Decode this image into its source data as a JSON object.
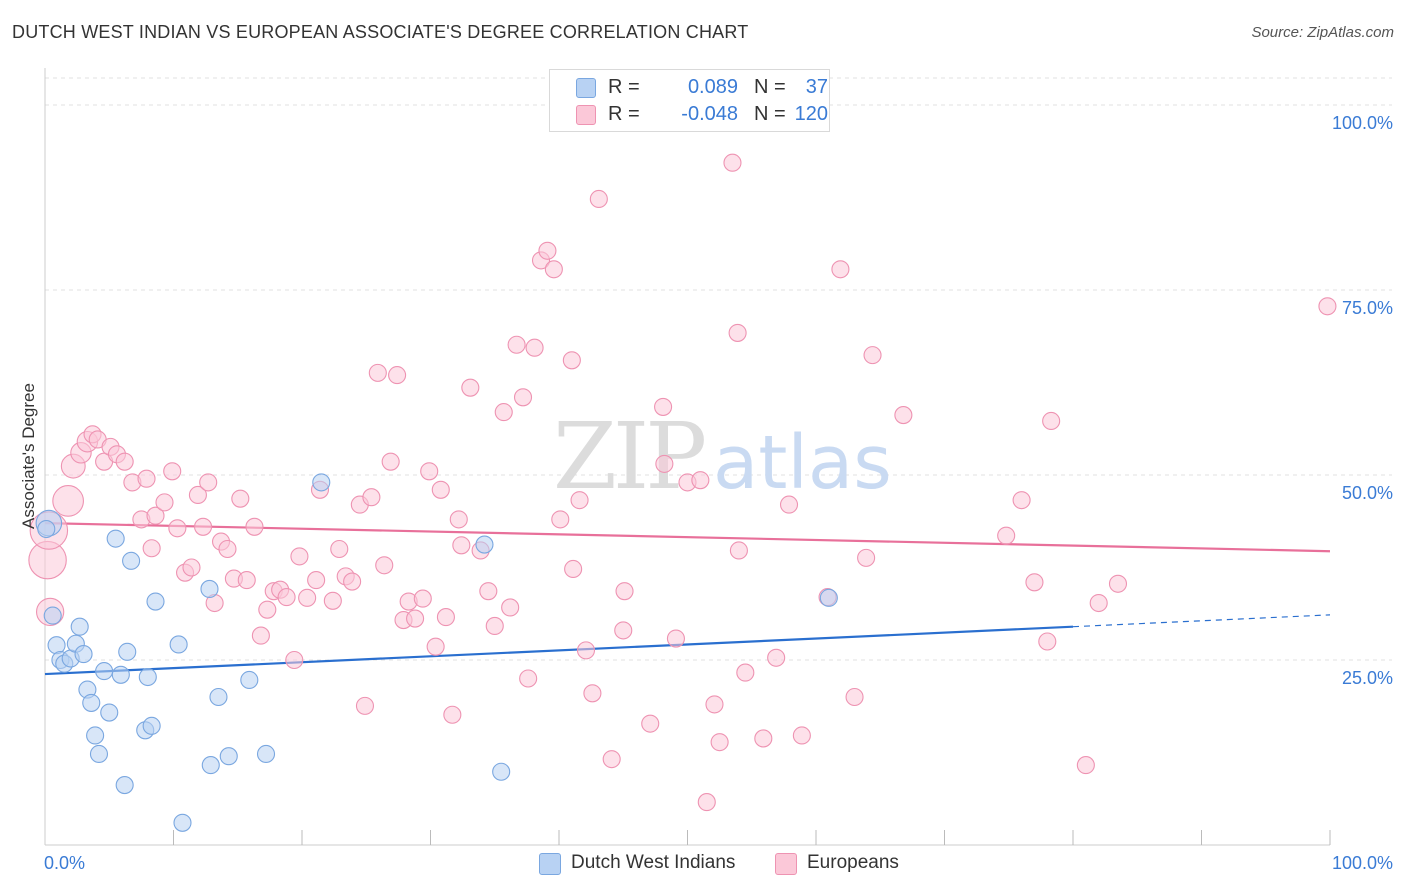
{
  "title": "DUTCH WEST INDIAN VS EUROPEAN ASSOCIATE'S DEGREE CORRELATION CHART",
  "source": "Source: ZipAtlas.com",
  "watermark": {
    "zip": "ZIP",
    "atlas": "atlas"
  },
  "legend": {
    "r_label": "R =",
    "n_label": "N =",
    "rows": [
      {
        "name": "Dutch West Indians",
        "r": "0.089",
        "n": "37",
        "fill": "#b8d2f3",
        "stroke": "#7aa7e0"
      },
      {
        "name": "Europeans",
        "r": "-0.048",
        "n": "120",
        "fill": "#fbc8d8",
        "stroke": "#ee93b2"
      }
    ]
  },
  "chart_data": {
    "type": "scatter",
    "title": "DUTCH WEST INDIAN VS EUROPEAN ASSOCIATE'S DEGREE CORRELATION CHART",
    "xlabel": "",
    "ylabel": "Associate's Degree",
    "xlim": [
      0,
      100
    ],
    "ylim": [
      0,
      105
    ],
    "x_tick_labels": [
      "0.0%",
      "100.0%"
    ],
    "y_ticks": [
      {
        "value": 100,
        "label": "100.0%"
      },
      {
        "value": 75,
        "label": "75.0%"
      },
      {
        "value": 50,
        "label": "50.0%"
      },
      {
        "value": 25,
        "label": "25.0%"
      }
    ],
    "grid": true,
    "series": [
      {
        "name": "Dutch West Indians",
        "color": "#7aa7e0",
        "fill": "#b8d2f3",
        "trend": {
          "x0": 0,
          "y0": 23.1,
          "x1": 80,
          "y1": 29.5,
          "dash_to_x": 100,
          "dash_to_y": 31.1,
          "color": "#2a6fcf"
        },
        "points": [
          {
            "x": 0.3,
            "y": 43.5,
            "s": 1.5
          },
          {
            "x": 0.6,
            "y": 31.0,
            "s": 1
          },
          {
            "x": 0.9,
            "y": 27.0,
            "s": 1
          },
          {
            "x": 1.2,
            "y": 25.0,
            "s": 1
          },
          {
            "x": 1.5,
            "y": 24.5,
            "s": 1
          },
          {
            "x": 2.0,
            "y": 25.2,
            "s": 1
          },
          {
            "x": 2.4,
            "y": 27.2,
            "s": 1
          },
          {
            "x": 2.7,
            "y": 29.5,
            "s": 1
          },
          {
            "x": 3.0,
            "y": 25.8,
            "s": 1
          },
          {
            "x": 3.3,
            "y": 21.0,
            "s": 1
          },
          {
            "x": 3.6,
            "y": 19.2,
            "s": 1
          },
          {
            "x": 3.9,
            "y": 14.8,
            "s": 1
          },
          {
            "x": 4.2,
            "y": 12.3,
            "s": 1
          },
          {
            "x": 4.6,
            "y": 23.5,
            "s": 1
          },
          {
            "x": 5.0,
            "y": 17.9,
            "s": 1
          },
          {
            "x": 5.5,
            "y": 41.4,
            "s": 1
          },
          {
            "x": 5.9,
            "y": 23.0,
            "s": 1
          },
          {
            "x": 6.2,
            "y": 8.1,
            "s": 1
          },
          {
            "x": 6.4,
            "y": 26.1,
            "s": 1
          },
          {
            "x": 6.7,
            "y": 38.4,
            "s": 1
          },
          {
            "x": 7.8,
            "y": 15.5,
            "s": 1
          },
          {
            "x": 8.0,
            "y": 22.7,
            "s": 1
          },
          {
            "x": 8.3,
            "y": 16.1,
            "s": 1
          },
          {
            "x": 8.6,
            "y": 32.9,
            "s": 1
          },
          {
            "x": 10.4,
            "y": 27.1,
            "s": 1
          },
          {
            "x": 10.7,
            "y": 3.0,
            "s": 1
          },
          {
            "x": 12.8,
            "y": 34.6,
            "s": 1
          },
          {
            "x": 12.9,
            "y": 10.8,
            "s": 1
          },
          {
            "x": 13.5,
            "y": 20.0,
            "s": 1
          },
          {
            "x": 14.3,
            "y": 12.0,
            "s": 1
          },
          {
            "x": 15.9,
            "y": 22.3,
            "s": 1
          },
          {
            "x": 17.2,
            "y": 12.3,
            "s": 1
          },
          {
            "x": 21.5,
            "y": 49.0,
            "s": 1
          },
          {
            "x": 34.2,
            "y": 40.6,
            "s": 1
          },
          {
            "x": 35.5,
            "y": 9.9,
            "s": 1
          },
          {
            "x": 61.0,
            "y": 33.4,
            "s": 1
          },
          {
            "x": 0.1,
            "y": 42.7,
            "s": 1
          }
        ]
      },
      {
        "name": "Europeans",
        "color": "#ee93b2",
        "fill": "#fbc8d8",
        "trend": {
          "x0": 0,
          "y0": 43.5,
          "x1": 100,
          "y1": 39.7,
          "color": "#e8709a"
        },
        "points": [
          {
            "x": 0.2,
            "y": 38.5,
            "s": 2.2
          },
          {
            "x": 0.3,
            "y": 42.5,
            "s": 2.2
          },
          {
            "x": 0.4,
            "y": 31.5,
            "s": 1.6
          },
          {
            "x": 1.8,
            "y": 46.5,
            "s": 1.8
          },
          {
            "x": 2.2,
            "y": 51.2,
            "s": 1.4
          },
          {
            "x": 2.8,
            "y": 53.0,
            "s": 1.2
          },
          {
            "x": 3.3,
            "y": 54.5,
            "s": 1.2
          },
          {
            "x": 3.7,
            "y": 55.5,
            "s": 1
          },
          {
            "x": 4.1,
            "y": 54.8,
            "s": 1
          },
          {
            "x": 4.6,
            "y": 51.8,
            "s": 1
          },
          {
            "x": 5.1,
            "y": 53.8,
            "s": 1
          },
          {
            "x": 5.6,
            "y": 52.8,
            "s": 1
          },
          {
            "x": 6.2,
            "y": 51.8,
            "s": 1
          },
          {
            "x": 6.8,
            "y": 49.0,
            "s": 1
          },
          {
            "x": 7.5,
            "y": 44.0,
            "s": 1
          },
          {
            "x": 7.9,
            "y": 49.5,
            "s": 1
          },
          {
            "x": 8.3,
            "y": 40.1,
            "s": 1
          },
          {
            "x": 8.6,
            "y": 44.5,
            "s": 1
          },
          {
            "x": 9.3,
            "y": 46.3,
            "s": 1
          },
          {
            "x": 9.9,
            "y": 50.5,
            "s": 1
          },
          {
            "x": 10.3,
            "y": 42.8,
            "s": 1
          },
          {
            "x": 10.9,
            "y": 36.8,
            "s": 1
          },
          {
            "x": 11.4,
            "y": 37.5,
            "s": 1
          },
          {
            "x": 11.9,
            "y": 47.3,
            "s": 1
          },
          {
            "x": 12.3,
            "y": 43.0,
            "s": 1
          },
          {
            "x": 12.7,
            "y": 49.0,
            "s": 1
          },
          {
            "x": 13.2,
            "y": 32.7,
            "s": 1
          },
          {
            "x": 13.7,
            "y": 41.0,
            "s": 1
          },
          {
            "x": 14.2,
            "y": 40.0,
            "s": 1
          },
          {
            "x": 14.7,
            "y": 36.0,
            "s": 1
          },
          {
            "x": 15.2,
            "y": 46.8,
            "s": 1
          },
          {
            "x": 15.7,
            "y": 35.8,
            "s": 1
          },
          {
            "x": 16.3,
            "y": 43.0,
            "s": 1
          },
          {
            "x": 16.8,
            "y": 28.3,
            "s": 1
          },
          {
            "x": 17.3,
            "y": 31.8,
            "s": 1
          },
          {
            "x": 17.8,
            "y": 34.3,
            "s": 1
          },
          {
            "x": 18.3,
            "y": 34.5,
            "s": 1
          },
          {
            "x": 18.8,
            "y": 33.5,
            "s": 1
          },
          {
            "x": 19.4,
            "y": 25.0,
            "s": 1
          },
          {
            "x": 19.8,
            "y": 39.0,
            "s": 1
          },
          {
            "x": 20.4,
            "y": 33.4,
            "s": 1
          },
          {
            "x": 21.1,
            "y": 35.8,
            "s": 1
          },
          {
            "x": 21.4,
            "y": 48.0,
            "s": 1
          },
          {
            "x": 22.4,
            "y": 33.0,
            "s": 1
          },
          {
            "x": 22.9,
            "y": 40.0,
            "s": 1
          },
          {
            "x": 23.4,
            "y": 36.3,
            "s": 1
          },
          {
            "x": 23.9,
            "y": 35.6,
            "s": 1
          },
          {
            "x": 24.5,
            "y": 46.0,
            "s": 1
          },
          {
            "x": 24.9,
            "y": 18.8,
            "s": 1
          },
          {
            "x": 25.4,
            "y": 47.0,
            "s": 1
          },
          {
            "x": 25.9,
            "y": 63.8,
            "s": 1
          },
          {
            "x": 26.4,
            "y": 37.8,
            "s": 1
          },
          {
            "x": 26.9,
            "y": 51.8,
            "s": 1
          },
          {
            "x": 27.4,
            "y": 63.5,
            "s": 1
          },
          {
            "x": 27.9,
            "y": 30.4,
            "s": 1
          },
          {
            "x": 28.3,
            "y": 32.9,
            "s": 1
          },
          {
            "x": 28.8,
            "y": 30.6,
            "s": 1
          },
          {
            "x": 29.4,
            "y": 33.3,
            "s": 1
          },
          {
            "x": 29.9,
            "y": 50.5,
            "s": 1
          },
          {
            "x": 30.4,
            "y": 26.8,
            "s": 1
          },
          {
            "x": 30.8,
            "y": 48.0,
            "s": 1
          },
          {
            "x": 31.2,
            "y": 30.8,
            "s": 1
          },
          {
            "x": 31.7,
            "y": 17.6,
            "s": 1
          },
          {
            "x": 32.2,
            "y": 44.0,
            "s": 1
          },
          {
            "x": 32.4,
            "y": 40.5,
            "s": 1
          },
          {
            "x": 33.1,
            "y": 61.8,
            "s": 1
          },
          {
            "x": 33.9,
            "y": 39.8,
            "s": 1
          },
          {
            "x": 34.5,
            "y": 34.3,
            "s": 1
          },
          {
            "x": 35.0,
            "y": 29.6,
            "s": 1
          },
          {
            "x": 35.7,
            "y": 58.5,
            "s": 1
          },
          {
            "x": 36.2,
            "y": 32.1,
            "s": 1
          },
          {
            "x": 36.7,
            "y": 67.6,
            "s": 1
          },
          {
            "x": 37.2,
            "y": 60.5,
            "s": 1
          },
          {
            "x": 37.6,
            "y": 22.5,
            "s": 1
          },
          {
            "x": 38.1,
            "y": 67.2,
            "s": 1
          },
          {
            "x": 38.6,
            "y": 79.0,
            "s": 1
          },
          {
            "x": 39.1,
            "y": 80.3,
            "s": 1
          },
          {
            "x": 39.6,
            "y": 77.8,
            "s": 1
          },
          {
            "x": 40.1,
            "y": 44.0,
            "s": 1
          },
          {
            "x": 41.0,
            "y": 65.5,
            "s": 1
          },
          {
            "x": 41.1,
            "y": 37.3,
            "s": 1
          },
          {
            "x": 41.6,
            "y": 46.6,
            "s": 1
          },
          {
            "x": 42.1,
            "y": 26.3,
            "s": 1
          },
          {
            "x": 42.6,
            "y": 20.5,
            "s": 1
          },
          {
            "x": 43.1,
            "y": 87.3,
            "s": 1
          },
          {
            "x": 44.1,
            "y": 11.6,
            "s": 1
          },
          {
            "x": 45.0,
            "y": 29.0,
            "s": 1
          },
          {
            "x": 45.1,
            "y": 34.3,
            "s": 1
          },
          {
            "x": 47.1,
            "y": 16.4,
            "s": 1
          },
          {
            "x": 48.1,
            "y": 59.2,
            "s": 1
          },
          {
            "x": 48.2,
            "y": 51.5,
            "s": 1
          },
          {
            "x": 49.1,
            "y": 27.9,
            "s": 1
          },
          {
            "x": 50.0,
            "y": 49.0,
            "s": 1
          },
          {
            "x": 51.0,
            "y": 49.3,
            "s": 1
          },
          {
            "x": 51.5,
            "y": 5.8,
            "s": 1
          },
          {
            "x": 52.1,
            "y": 19.0,
            "s": 1
          },
          {
            "x": 52.5,
            "y": 13.9,
            "s": 1
          },
          {
            "x": 53.5,
            "y": 92.2,
            "s": 1
          },
          {
            "x": 53.9,
            "y": 69.2,
            "s": 1
          },
          {
            "x": 54.0,
            "y": 39.8,
            "s": 1
          },
          {
            "x": 54.5,
            "y": 23.3,
            "s": 1
          },
          {
            "x": 55.9,
            "y": 14.4,
            "s": 1
          },
          {
            "x": 56.9,
            "y": 25.3,
            "s": 1
          },
          {
            "x": 57.9,
            "y": 46.0,
            "s": 1
          },
          {
            "x": 58.9,
            "y": 14.8,
            "s": 1
          },
          {
            "x": 60.9,
            "y": 33.5,
            "s": 1
          },
          {
            "x": 61.9,
            "y": 77.8,
            "s": 1
          },
          {
            "x": 63.0,
            "y": 20.0,
            "s": 1
          },
          {
            "x": 63.9,
            "y": 38.8,
            "s": 1
          },
          {
            "x": 64.4,
            "y": 66.2,
            "s": 1
          },
          {
            "x": 66.8,
            "y": 58.1,
            "s": 1
          },
          {
            "x": 74.8,
            "y": 41.8,
            "s": 1
          },
          {
            "x": 76.0,
            "y": 46.6,
            "s": 1
          },
          {
            "x": 77.0,
            "y": 35.5,
            "s": 1
          },
          {
            "x": 78.0,
            "y": 27.5,
            "s": 1
          },
          {
            "x": 78.3,
            "y": 57.3,
            "s": 1
          },
          {
            "x": 81.0,
            "y": 10.8,
            "s": 1
          },
          {
            "x": 82.0,
            "y": 32.7,
            "s": 1
          },
          {
            "x": 83.5,
            "y": 35.3,
            "s": 1
          },
          {
            "x": 99.8,
            "y": 72.8,
            "s": 1
          }
        ]
      }
    ]
  }
}
